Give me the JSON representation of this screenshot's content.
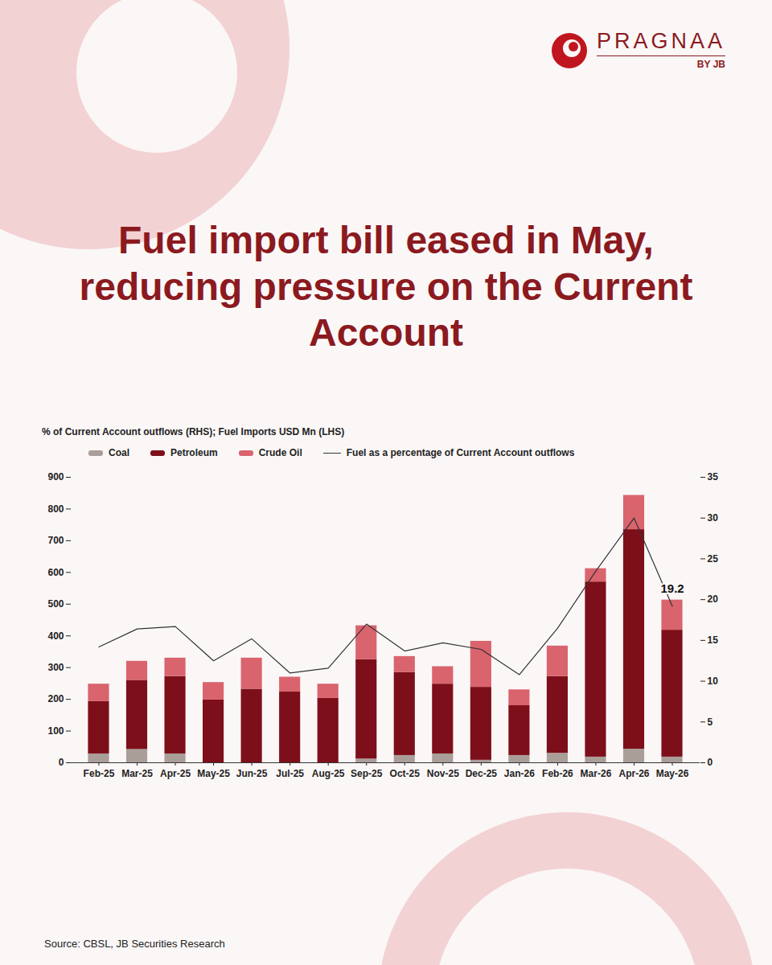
{
  "brand": {
    "name": "PRAGNAA",
    "tagline": "BY JB"
  },
  "chart_data": {
    "type": "bar",
    "title": "Fuel import bill eased in May, reducing pressure on the Current Account",
    "ylabel": "% of Current Account outflows (RHS); Fuel Imports USD Mn (LHS)",
    "categories": [
      "Feb-25",
      "Mar-25",
      "Apr-25",
      "May-25",
      "Jun-25",
      "Jul-25",
      "Aug-25",
      "Sep-25",
      "Oct-25",
      "Nov-25",
      "Dec-25",
      "Jan-26",
      "Feb-26",
      "Mar-26",
      "Apr-26",
      "May-26"
    ],
    "series": [
      {
        "name": "Coal",
        "color": "#aa9e99",
        "values": [
          28,
          42,
          28,
          0,
          0,
          0,
          0,
          12,
          23,
          28,
          8,
          23,
          30,
          18,
          43,
          18
        ]
      },
      {
        "name": "Petroleum",
        "color": "#7d0f1a",
        "values": [
          165,
          218,
          244,
          198,
          232,
          223,
          203,
          313,
          262,
          220,
          230,
          157,
          242,
          552,
          692,
          400
        ]
      },
      {
        "name": "Crude Oil",
        "color": "#d9646e",
        "values": [
          55,
          60,
          58,
          55,
          98,
          47,
          45,
          107,
          50,
          55,
          145,
          50,
          96,
          42,
          108,
          95
        ]
      },
      {
        "name": "Fuel as a percentage of Current Account outflows",
        "type": "line",
        "axis": "y2",
        "color": "#333333",
        "values": [
          14.2,
          16.4,
          16.7,
          12.5,
          15.2,
          11.0,
          11.6,
          17.0,
          13.7,
          14.7,
          13.9,
          10.8,
          16.5,
          23.5,
          30.0,
          19.2
        ]
      }
    ],
    "stacked": true,
    "ylim": [
      0,
      900
    ],
    "yticks": [
      0,
      100,
      200,
      300,
      400,
      500,
      600,
      700,
      800,
      900
    ],
    "y2lim": [
      0,
      35
    ],
    "y2ticks": [
      0,
      5,
      10,
      15,
      20,
      25,
      30,
      35
    ],
    "legend": "top",
    "annotations": [
      {
        "x": "May-26",
        "y": 19.2,
        "text": "19.2",
        "axis": "y2"
      }
    ],
    "source": "Source: CBSL, JB Securities Research"
  }
}
